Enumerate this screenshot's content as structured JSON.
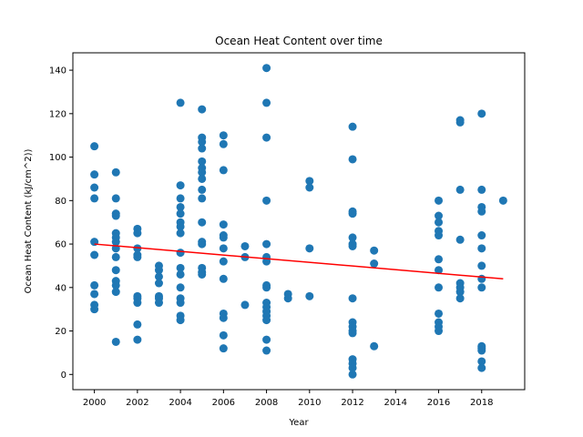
{
  "chart_data": {
    "type": "scatter",
    "title": "Ocean Heat Content over time",
    "xlabel": "Year",
    "ylabel": "Ocean Heat Content (kJ/cm^2))",
    "xlim": [
      1999.0,
      2020.0
    ],
    "ylim": [
      -7.0,
      148.0
    ],
    "xticks": [
      2000,
      2002,
      2004,
      2006,
      2008,
      2010,
      2012,
      2014,
      2016,
      2018
    ],
    "yticks": [
      0,
      20,
      40,
      60,
      80,
      100,
      120,
      140
    ],
    "grid": false,
    "colors": {
      "points": "#1f77b4",
      "trend": "#ff0000"
    },
    "series": [
      {
        "type": "scatter",
        "points": [
          [
            2000,
            105
          ],
          [
            2000,
            92
          ],
          [
            2000,
            86
          ],
          [
            2000,
            81
          ],
          [
            2000,
            61
          ],
          [
            2000,
            55
          ],
          [
            2000,
            41
          ],
          [
            2000,
            37
          ],
          [
            2000,
            32
          ],
          [
            2000,
            30
          ],
          [
            2001,
            93
          ],
          [
            2001,
            81
          ],
          [
            2001,
            74
          ],
          [
            2001,
            73
          ],
          [
            2001,
            65
          ],
          [
            2001,
            63
          ],
          [
            2001,
            61
          ],
          [
            2001,
            58
          ],
          [
            2001,
            54
          ],
          [
            2001,
            48
          ],
          [
            2001,
            43
          ],
          [
            2001,
            41
          ],
          [
            2001,
            38
          ],
          [
            2001,
            15
          ],
          [
            2002,
            67
          ],
          [
            2002,
            65
          ],
          [
            2002,
            58
          ],
          [
            2002,
            55
          ],
          [
            2002,
            54
          ],
          [
            2002,
            36
          ],
          [
            2002,
            35
          ],
          [
            2002,
            33
          ],
          [
            2002,
            23
          ],
          [
            2002,
            16
          ],
          [
            2003,
            50
          ],
          [
            2003,
            48
          ],
          [
            2003,
            45
          ],
          [
            2003,
            42
          ],
          [
            2003,
            36
          ],
          [
            2003,
            35
          ],
          [
            2003,
            33
          ],
          [
            2004,
            125
          ],
          [
            2004,
            87
          ],
          [
            2004,
            81
          ],
          [
            2004,
            77
          ],
          [
            2004,
            74
          ],
          [
            2004,
            70
          ],
          [
            2004,
            68
          ],
          [
            2004,
            65
          ],
          [
            2004,
            56
          ],
          [
            2004,
            49
          ],
          [
            2004,
            46
          ],
          [
            2004,
            40
          ],
          [
            2004,
            35
          ],
          [
            2004,
            33
          ],
          [
            2004,
            27
          ],
          [
            2004,
            25
          ],
          [
            2005,
            122
          ],
          [
            2005,
            109
          ],
          [
            2005,
            107
          ],
          [
            2005,
            104
          ],
          [
            2005,
            98
          ],
          [
            2005,
            95
          ],
          [
            2005,
            93
          ],
          [
            2005,
            90
          ],
          [
            2005,
            85
          ],
          [
            2005,
            81
          ],
          [
            2005,
            70
          ],
          [
            2005,
            61
          ],
          [
            2005,
            60
          ],
          [
            2005,
            49
          ],
          [
            2005,
            47
          ],
          [
            2005,
            46
          ],
          [
            2006,
            110
          ],
          [
            2006,
            106
          ],
          [
            2006,
            94
          ],
          [
            2006,
            69
          ],
          [
            2006,
            64
          ],
          [
            2006,
            63
          ],
          [
            2006,
            58
          ],
          [
            2006,
            52
          ],
          [
            2006,
            44
          ],
          [
            2006,
            28
          ],
          [
            2006,
            26
          ],
          [
            2006,
            18
          ],
          [
            2006,
            12
          ],
          [
            2007,
            59
          ],
          [
            2007,
            54
          ],
          [
            2007,
            32
          ],
          [
            2008,
            141
          ],
          [
            2008,
            125
          ],
          [
            2008,
            109
          ],
          [
            2008,
            80
          ],
          [
            2008,
            60
          ],
          [
            2008,
            54
          ],
          [
            2008,
            52
          ],
          [
            2008,
            41
          ],
          [
            2008,
            40
          ],
          [
            2008,
            33
          ],
          [
            2008,
            31
          ],
          [
            2008,
            29
          ],
          [
            2008,
            27
          ],
          [
            2008,
            25
          ],
          [
            2008,
            16
          ],
          [
            2008,
            11
          ],
          [
            2009,
            37
          ],
          [
            2009,
            35
          ],
          [
            2010,
            89
          ],
          [
            2010,
            86
          ],
          [
            2010,
            58
          ],
          [
            2010,
            36
          ],
          [
            2012,
            114
          ],
          [
            2012,
            99
          ],
          [
            2012,
            75
          ],
          [
            2012,
            74
          ],
          [
            2012,
            63
          ],
          [
            2012,
            60
          ],
          [
            2012,
            59
          ],
          [
            2012,
            35
          ],
          [
            2012,
            24
          ],
          [
            2012,
            22
          ],
          [
            2012,
            20
          ],
          [
            2012,
            19
          ],
          [
            2012,
            7
          ],
          [
            2012,
            5
          ],
          [
            2012,
            3
          ],
          [
            2012,
            0
          ],
          [
            2013,
            57
          ],
          [
            2013,
            51
          ],
          [
            2013,
            13
          ],
          [
            2016,
            80
          ],
          [
            2016,
            73
          ],
          [
            2016,
            70
          ],
          [
            2016,
            66
          ],
          [
            2016,
            64
          ],
          [
            2016,
            53
          ],
          [
            2016,
            48
          ],
          [
            2016,
            40
          ],
          [
            2016,
            28
          ],
          [
            2016,
            24
          ],
          [
            2016,
            22
          ],
          [
            2016,
            20
          ],
          [
            2017,
            117
          ],
          [
            2017,
            116
          ],
          [
            2017,
            85
          ],
          [
            2017,
            62
          ],
          [
            2017,
            42
          ],
          [
            2017,
            40
          ],
          [
            2017,
            38
          ],
          [
            2017,
            35
          ],
          [
            2018,
            120
          ],
          [
            2018,
            85
          ],
          [
            2018,
            77
          ],
          [
            2018,
            75
          ],
          [
            2018,
            64
          ],
          [
            2018,
            58
          ],
          [
            2018,
            50
          ],
          [
            2018,
            44
          ],
          [
            2018,
            40
          ],
          [
            2018,
            13
          ],
          [
            2018,
            12
          ],
          [
            2018,
            11
          ],
          [
            2018,
            6
          ],
          [
            2018,
            3
          ],
          [
            2019,
            80
          ]
        ]
      },
      {
        "type": "line",
        "points": [
          [
            2000,
            60.0
          ],
          [
            2019,
            44.0
          ]
        ]
      }
    ]
  }
}
